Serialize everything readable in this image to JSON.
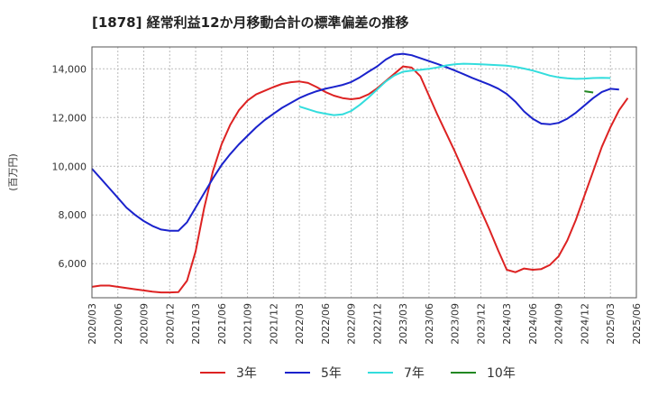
{
  "chart_data": {
    "type": "line",
    "title": "[1878]  経常利益12か月移動合計の標準偏差の推移",
    "ylabel": "(百万円)",
    "ylim": [
      4600,
      14900
    ],
    "yticks": [
      6000,
      8000,
      10000,
      12000,
      14000
    ],
    "ytick_labels": [
      "6,000",
      "8,000",
      "10,000",
      "12,000",
      "14,000"
    ],
    "xrange": [
      "2020-03",
      "2025-06"
    ],
    "xtick_labels": [
      "2020/03",
      "2020/06",
      "2020/09",
      "2020/12",
      "2021/03",
      "2021/06",
      "2021/09",
      "2021/12",
      "2022/03",
      "2022/06",
      "2022/09",
      "2022/12",
      "2023/03",
      "2023/06",
      "2023/09",
      "2023/12",
      "2024/03",
      "2024/06",
      "2024/09",
      "2024/12",
      "2025/03",
      "2025/06"
    ],
    "grid": true,
    "legend_position": "bottom",
    "colors": {
      "3年": "#dd2222",
      "5年": "#1a22cc",
      "7年": "#33dddd",
      "10年": "#228822"
    },
    "series": [
      {
        "name": "3年",
        "start": "2020-03",
        "values": [
          5050,
          5100,
          5100,
          5050,
          5000,
          4950,
          4900,
          4850,
          4820,
          4820,
          4830,
          5300,
          6500,
          8300,
          9800,
          10900,
          11700,
          12300,
          12700,
          12950,
          13100,
          13250,
          13380,
          13450,
          13480,
          13420,
          13250,
          13050,
          12900,
          12800,
          12750,
          12800,
          12950,
          13200,
          13500,
          13800,
          14100,
          14050,
          13700,
          12900,
          12100,
          11350,
          10600,
          9800,
          9000,
          8200,
          7400,
          6550,
          5750,
          5650,
          5800,
          5750,
          5780,
          5950,
          6300,
          6950,
          7800,
          8800,
          9800,
          10800,
          11600,
          12300,
          12800
        ]
      },
      {
        "name": "5年",
        "start": "2020-03",
        "values": [
          9900,
          9500,
          9100,
          8700,
          8300,
          8000,
          7750,
          7550,
          7400,
          7350,
          7350,
          7700,
          8300,
          8900,
          9500,
          10050,
          10500,
          10900,
          11250,
          11600,
          11900,
          12150,
          12400,
          12600,
          12800,
          12950,
          13080,
          13180,
          13260,
          13340,
          13460,
          13650,
          13880,
          14100,
          14380,
          14580,
          14620,
          14560,
          14440,
          14320,
          14200,
          14070,
          13930,
          13780,
          13630,
          13490,
          13350,
          13190,
          12970,
          12650,
          12250,
          11950,
          11750,
          11720,
          11780,
          11950,
          12200,
          12500,
          12800,
          13050,
          13180,
          13150
        ]
      },
      {
        "name": "7年",
        "start": "2022-03",
        "values": [
          12450,
          12340,
          12230,
          12160,
          12100,
          12130,
          12270,
          12520,
          12820,
          13150,
          13480,
          13730,
          13880,
          13930,
          13960,
          14000,
          14060,
          14140,
          14190,
          14210,
          14200,
          14190,
          14170,
          14150,
          14130,
          14080,
          14010,
          13930,
          13830,
          13720,
          13650,
          13610,
          13590,
          13600,
          13620,
          13630,
          13620
        ]
      },
      {
        "name": "10年",
        "start": "2024-12",
        "values": [
          13080,
          13030
        ]
      }
    ]
  }
}
